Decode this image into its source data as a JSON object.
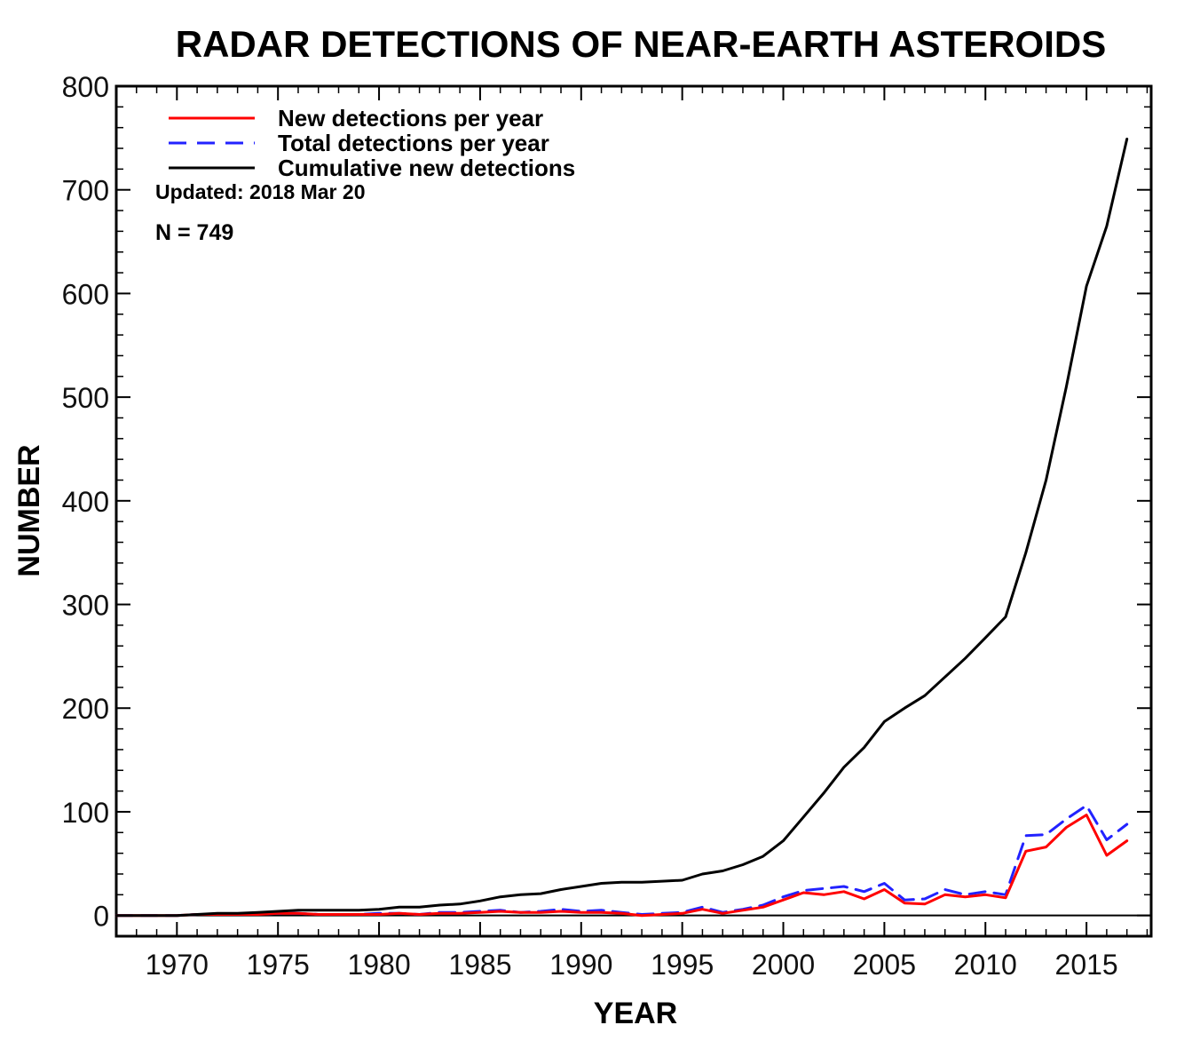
{
  "chart_data": {
    "type": "line",
    "title": "RADAR DETECTIONS OF NEAR-EARTH ASTEROIDS",
    "xlabel": "YEAR",
    "ylabel": "NUMBER",
    "xlim": [
      1967,
      2018.2
    ],
    "ylim": [
      -20,
      800
    ],
    "x_ticks": [
      1970,
      1975,
      1980,
      1985,
      1990,
      1995,
      2000,
      2005,
      2010,
      2015
    ],
    "y_ticks": [
      0,
      100,
      200,
      300,
      400,
      500,
      600,
      700,
      800
    ],
    "grid": false,
    "legend_position": "top-left",
    "annotations": {
      "updated": "Updated: 2018 Mar 20",
      "count": "N = 749"
    },
    "x": [
      1967,
      1968,
      1969,
      1970,
      1971,
      1972,
      1973,
      1974,
      1975,
      1976,
      1977,
      1978,
      1979,
      1980,
      1981,
      1982,
      1983,
      1984,
      1985,
      1986,
      1987,
      1988,
      1989,
      1990,
      1991,
      1992,
      1993,
      1994,
      1995,
      1996,
      1997,
      1998,
      1999,
      2000,
      2001,
      2002,
      2003,
      2004,
      2005,
      2006,
      2007,
      2008,
      2009,
      2010,
      2011,
      2012,
      2013,
      2014,
      2015,
      2016,
      2017
    ],
    "series": [
      {
        "name": "New detections per year",
        "color": "#ff0000",
        "style": "solid",
        "values": [
          0,
          0,
          0,
          0,
          1,
          1,
          1,
          1,
          2,
          2,
          1,
          1,
          1,
          1,
          2,
          1,
          2,
          2,
          3,
          4,
          3,
          3,
          4,
          3,
          3,
          2,
          0,
          1,
          2,
          6,
          2,
          5,
          8,
          15,
          22,
          20,
          23,
          16,
          25,
          12,
          11,
          20,
          18,
          20,
          17,
          62,
          66,
          85,
          97,
          58,
          72
        ]
      },
      {
        "name": "Total detections per year",
        "color": "#2222ff",
        "style": "dashed",
        "values": [
          0,
          0,
          0,
          0,
          1,
          1,
          1,
          1,
          2,
          2,
          1,
          1,
          1,
          2,
          2,
          1,
          3,
          3,
          4,
          5,
          3,
          4,
          6,
          4,
          5,
          3,
          1,
          2,
          3,
          8,
          3,
          6,
          10,
          18,
          24,
          26,
          28,
          23,
          31,
          15,
          16,
          25,
          20,
          23,
          20,
          77,
          78,
          93,
          106,
          73,
          88
        ]
      },
      {
        "name": "Cumulative new detections",
        "color": "#000000",
        "style": "solid",
        "values": [
          0,
          0,
          0,
          0,
          1,
          2,
          2,
          3,
          4,
          5,
          5,
          5,
          5,
          6,
          8,
          8,
          10,
          11,
          14,
          18,
          20,
          21,
          25,
          28,
          31,
          32,
          32,
          33,
          34,
          40,
          43,
          49,
          57,
          72,
          95,
          118,
          143,
          162,
          187,
          200,
          212,
          230,
          248,
          268,
          288,
          350,
          420,
          510,
          607,
          665,
          749
        ]
      }
    ]
  }
}
